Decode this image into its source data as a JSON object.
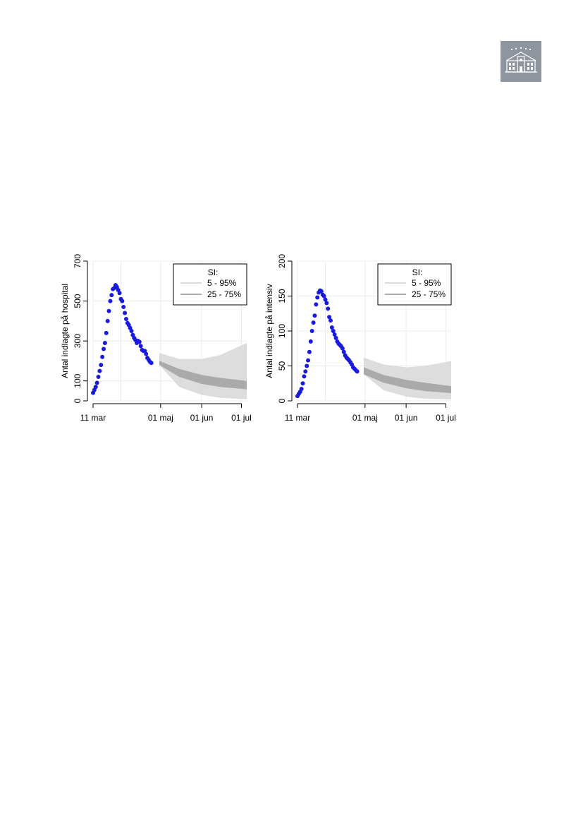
{
  "logo": {
    "icon": "hospital-building-icon",
    "background": "#8e959f"
  },
  "chart_data": [
    {
      "type": "scatter",
      "ylabel": "Antal indlagte på hospital",
      "ylim": [
        0,
        700
      ],
      "yticks": [
        0,
        100,
        300,
        500,
        700
      ],
      "x_start": "2020-03-11",
      "x_end": "2020-07-05",
      "xticks": [
        {
          "date": "2020-03-11",
          "label": "11 mar"
        },
        {
          "date": "2020-05-01",
          "label": "01 maj"
        },
        {
          "date": "2020-06-01",
          "label": "01 jun"
        },
        {
          "date": "2020-07-01",
          "label": "01 jul"
        }
      ],
      "grid": true,
      "legend": {
        "position": "top-right",
        "title": "SI:",
        "items": [
          "5 - 95%",
          "25 - 75%"
        ]
      },
      "series": [
        {
          "kind": "observed",
          "color": "#1a1adf",
          "points": [
            [
              "2020-03-11",
              40
            ],
            [
              "2020-03-12",
              55
            ],
            [
              "2020-03-13",
              70
            ],
            [
              "2020-03-14",
              90
            ],
            [
              "2020-03-15",
              120
            ],
            [
              "2020-03-16",
              150
            ],
            [
              "2020-03-17",
              180
            ],
            [
              "2020-03-18",
              220
            ],
            [
              "2020-03-19",
              260
            ],
            [
              "2020-03-20",
              290
            ],
            [
              "2020-03-21",
              340
            ],
            [
              "2020-03-22",
              400
            ],
            [
              "2020-03-23",
              450
            ],
            [
              "2020-03-24",
              500
            ],
            [
              "2020-03-25",
              530
            ],
            [
              "2020-03-26",
              560
            ],
            [
              "2020-03-27",
              565
            ],
            [
              "2020-03-28",
              580
            ],
            [
              "2020-03-29",
              570
            ],
            [
              "2020-03-30",
              555
            ],
            [
              "2020-03-31",
              540
            ],
            [
              "2020-04-01",
              510
            ],
            [
              "2020-04-02",
              500
            ],
            [
              "2020-04-03",
              470
            ],
            [
              "2020-04-04",
              440
            ],
            [
              "2020-04-05",
              410
            ],
            [
              "2020-04-06",
              390
            ],
            [
              "2020-04-07",
              380
            ],
            [
              "2020-04-08",
              365
            ],
            [
              "2020-04-09",
              350
            ],
            [
              "2020-04-10",
              330
            ],
            [
              "2020-04-11",
              315
            ],
            [
              "2020-04-12",
              305
            ],
            [
              "2020-04-13",
              290
            ],
            [
              "2020-04-14",
              300
            ],
            [
              "2020-04-15",
              295
            ],
            [
              "2020-04-16",
              275
            ],
            [
              "2020-04-17",
              255
            ],
            [
              "2020-04-18",
              250
            ],
            [
              "2020-04-19",
              250
            ],
            [
              "2020-04-20",
              235
            ],
            [
              "2020-04-21",
              215
            ],
            [
              "2020-04-22",
              205
            ],
            [
              "2020-04-23",
              195
            ],
            [
              "2020-04-24",
              190
            ]
          ]
        },
        {
          "kind": "band",
          "name": "5 - 95%",
          "color": "#dddddd",
          "x": [
            "2020-04-30",
            "2020-05-15",
            "2020-06-01",
            "2020-06-15",
            "2020-07-05"
          ],
          "lower": [
            180,
            70,
            30,
            15,
            8
          ],
          "upper": [
            240,
            210,
            210,
            230,
            290
          ]
        },
        {
          "kind": "band",
          "name": "25 - 75%",
          "color": "#aaaaaa",
          "x": [
            "2020-04-30",
            "2020-05-15",
            "2020-06-01",
            "2020-06-15",
            "2020-07-05"
          ],
          "lower": [
            180,
            120,
            85,
            70,
            58
          ],
          "upper": [
            200,
            160,
            130,
            115,
            100
          ]
        }
      ]
    },
    {
      "type": "scatter",
      "ylabel": "Antal indlagte på intensiv",
      "ylim": [
        0,
        200
      ],
      "yticks": [
        0,
        50,
        100,
        150,
        200
      ],
      "x_start": "2020-03-11",
      "x_end": "2020-07-05",
      "xticks": [
        {
          "date": "2020-03-11",
          "label": "11 mar"
        },
        {
          "date": "2020-05-01",
          "label": "01 maj"
        },
        {
          "date": "2020-06-01",
          "label": "01 jun"
        },
        {
          "date": "2020-07-01",
          "label": "01 jul"
        }
      ],
      "grid": true,
      "legend": {
        "position": "top-right",
        "title": "SI:",
        "items": [
          "5 - 95%",
          "25 - 75%"
        ]
      },
      "series": [
        {
          "kind": "observed",
          "color": "#1a1adf",
          "points": [
            [
              "2020-03-11",
              7
            ],
            [
              "2020-03-12",
              10
            ],
            [
              "2020-03-13",
              13
            ],
            [
              "2020-03-14",
              17
            ],
            [
              "2020-03-15",
              25
            ],
            [
              "2020-03-16",
              35
            ],
            [
              "2020-03-17",
              42
            ],
            [
              "2020-03-18",
              50
            ],
            [
              "2020-03-19",
              58
            ],
            [
              "2020-03-20",
              70
            ],
            [
              "2020-03-21",
              85
            ],
            [
              "2020-03-22",
              100
            ],
            [
              "2020-03-23",
              112
            ],
            [
              "2020-03-24",
              122
            ],
            [
              "2020-03-25",
              138
            ],
            [
              "2020-03-26",
              148
            ],
            [
              "2020-03-27",
              155
            ],
            [
              "2020-03-28",
              158
            ],
            [
              "2020-03-29",
              157
            ],
            [
              "2020-03-30",
              152
            ],
            [
              "2020-03-31",
              150
            ],
            [
              "2020-04-01",
              145
            ],
            [
              "2020-04-02",
              140
            ],
            [
              "2020-04-03",
              132
            ],
            [
              "2020-04-04",
              120
            ],
            [
              "2020-04-05",
              115
            ],
            [
              "2020-04-06",
              105
            ],
            [
              "2020-04-07",
              100
            ],
            [
              "2020-04-08",
              95
            ],
            [
              "2020-04-09",
              90
            ],
            [
              "2020-04-10",
              85
            ],
            [
              "2020-04-11",
              82
            ],
            [
              "2020-04-12",
              80
            ],
            [
              "2020-04-13",
              78
            ],
            [
              "2020-04-14",
              75
            ],
            [
              "2020-04-15",
              70
            ],
            [
              "2020-04-16",
              65
            ],
            [
              "2020-04-17",
              62
            ],
            [
              "2020-04-18",
              60
            ],
            [
              "2020-04-19",
              58
            ],
            [
              "2020-04-20",
              55
            ],
            [
              "2020-04-21",
              52
            ],
            [
              "2020-04-22",
              48
            ],
            [
              "2020-04-23",
              46
            ],
            [
              "2020-04-24",
              44
            ],
            [
              "2020-04-25",
              42
            ]
          ]
        },
        {
          "kind": "band",
          "name": "5 - 95%",
          "color": "#dddddd",
          "x": [
            "2020-04-30",
            "2020-05-15",
            "2020-06-01",
            "2020-06-15",
            "2020-07-05"
          ],
          "lower": [
            38,
            15,
            6,
            3,
            2
          ],
          "upper": [
            62,
            52,
            48,
            50,
            57
          ]
        },
        {
          "kind": "band",
          "name": "25 - 75%",
          "color": "#aaaaaa",
          "x": [
            "2020-04-30",
            "2020-05-15",
            "2020-06-01",
            "2020-06-15",
            "2020-07-05"
          ],
          "lower": [
            38,
            26,
            18,
            14,
            11
          ],
          "upper": [
            48,
            37,
            30,
            26,
            21
          ]
        }
      ]
    }
  ]
}
